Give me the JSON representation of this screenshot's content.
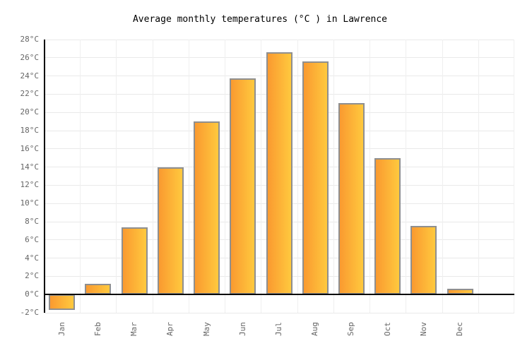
{
  "chart_data": {
    "type": "bar",
    "title": "Average monthly temperatures (°C ) in Lawrence",
    "categories": [
      "Jan",
      "Feb",
      "Mar",
      "Apr",
      "May",
      "Jun",
      "Jul",
      "Aug",
      "Sep",
      "Oct",
      "Nov",
      "Dec"
    ],
    "values": [
      -1.7,
      1.2,
      7.4,
      14.0,
      19.0,
      23.7,
      26.6,
      25.6,
      21.0,
      15.0,
      7.5,
      0.6
    ],
    "xlabel": "",
    "ylabel": "",
    "ylim": [
      -2,
      28
    ],
    "ytick_step": 2,
    "ytick_suffix": "°C",
    "grid": true,
    "legend": "none",
    "total_slots": 13,
    "colors": {
      "bar_gradient_start": "#fa9a30",
      "bar_gradient_end": "#ffc93e",
      "bar_border": "#8f8f8f",
      "axis_line": "#000000",
      "gridline": "#e9e9e9",
      "tick_label": "#666666",
      "title": "#000000",
      "background": "#ffffff"
    }
  }
}
